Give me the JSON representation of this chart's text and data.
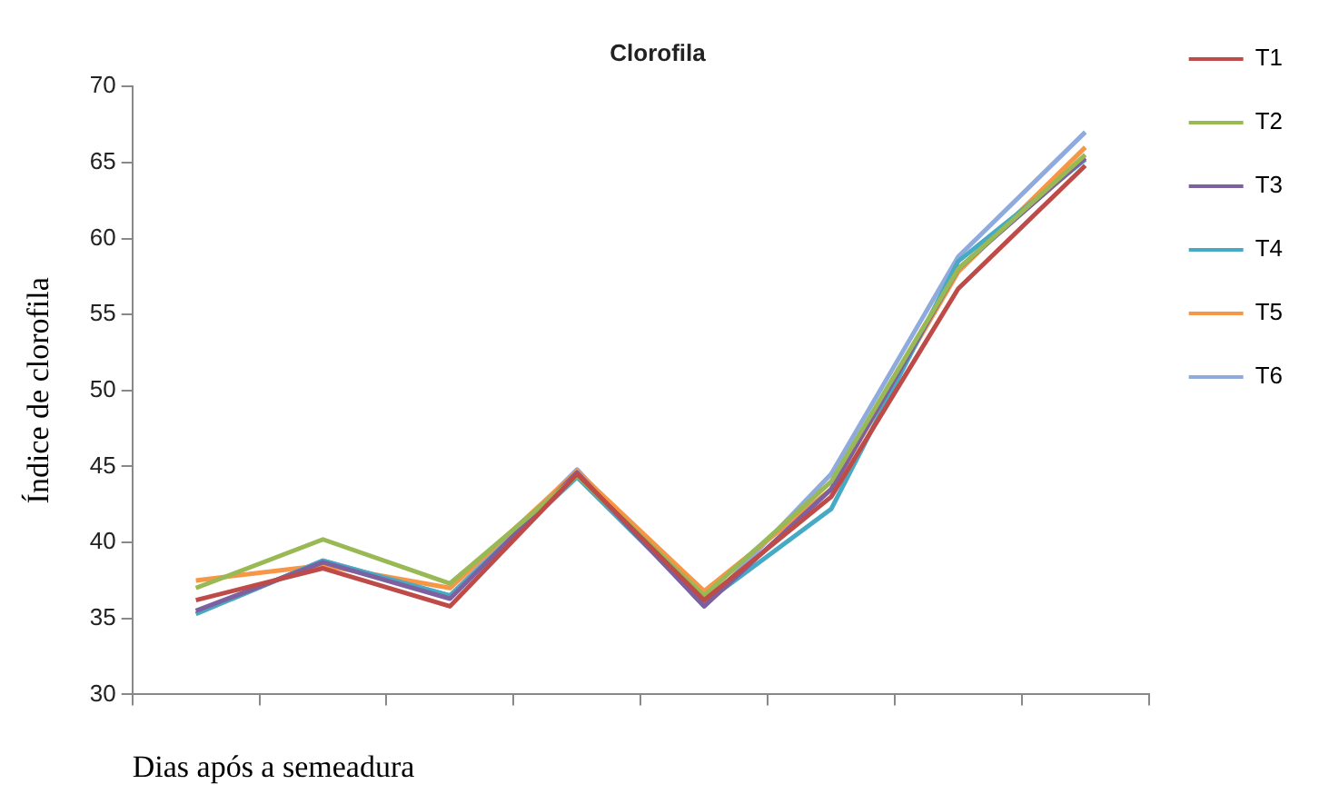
{
  "chart_data": {
    "type": "line",
    "title": "Clorofila",
    "xlabel": "Dias após a semeadura",
    "ylabel": "Índice de clorofila",
    "categories": [
      null,
      null,
      null,
      null,
      null,
      null,
      null,
      null
    ],
    "series": [
      {
        "name": "T1",
        "color": "#be4b48",
        "values": [
          36.2,
          38.3,
          35.8,
          44.5,
          36.2,
          43.0,
          56.7,
          64.8
        ]
      },
      {
        "name": "T2",
        "color": "#98b954",
        "values": [
          37.0,
          40.2,
          37.3,
          44.4,
          36.5,
          44.0,
          58.0,
          65.5
        ]
      },
      {
        "name": "T3",
        "color": "#7d60a0",
        "values": [
          35.5,
          38.7,
          36.3,
          44.6,
          35.8,
          43.5,
          58.0,
          65.3
        ]
      },
      {
        "name": "T4",
        "color": "#46aac5",
        "values": [
          35.3,
          38.8,
          36.5,
          44.3,
          36.0,
          42.2,
          58.5,
          65.2
        ]
      },
      {
        "name": "T5",
        "color": "#f79646",
        "values": [
          37.5,
          38.5,
          37.0,
          44.7,
          36.8,
          43.5,
          57.8,
          66.0
        ]
      },
      {
        "name": "T6",
        "color": "#8faadc",
        "values": [
          35.3,
          38.8,
          36.5,
          44.8,
          35.8,
          44.5,
          58.8,
          67.0
        ]
      }
    ],
    "ylim": [
      30,
      70
    ],
    "yticks": [
      30,
      35,
      40,
      45,
      50,
      55,
      60,
      65,
      70
    ],
    "grid": false,
    "legend": "top right",
    "marker": "none",
    "line_style": "solid"
  }
}
